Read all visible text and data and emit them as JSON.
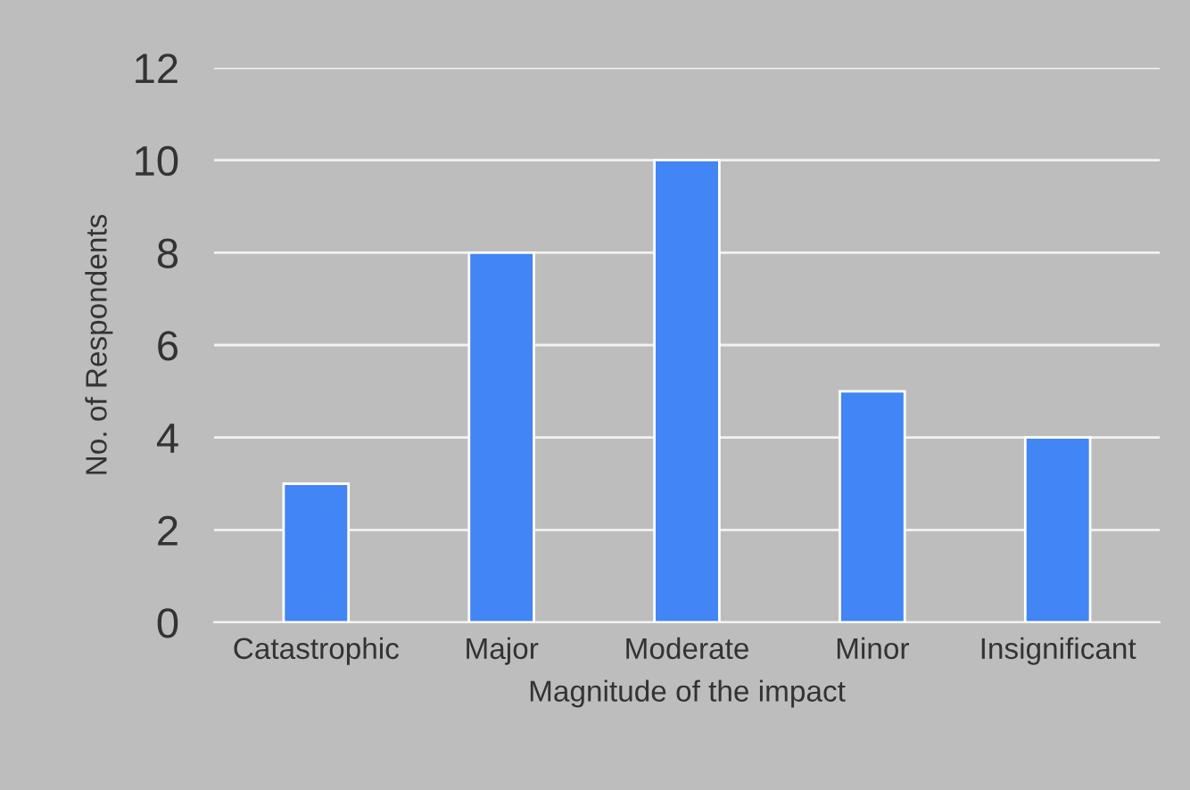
{
  "chart_data": {
    "type": "bar",
    "xlabel": "Magnitude of the impact",
    "ylabel": "No. of Respondents",
    "categories": [
      "Catastrophic",
      "Major",
      "Moderate",
      "Minor",
      "Insignificant"
    ],
    "values": [
      3,
      8,
      10,
      5,
      4
    ],
    "color": "#4285f4",
    "ylim": [
      0,
      12
    ],
    "yticks": [
      0,
      2,
      4,
      6,
      8,
      10,
      12
    ],
    "grid": "y",
    "legend": false
  }
}
